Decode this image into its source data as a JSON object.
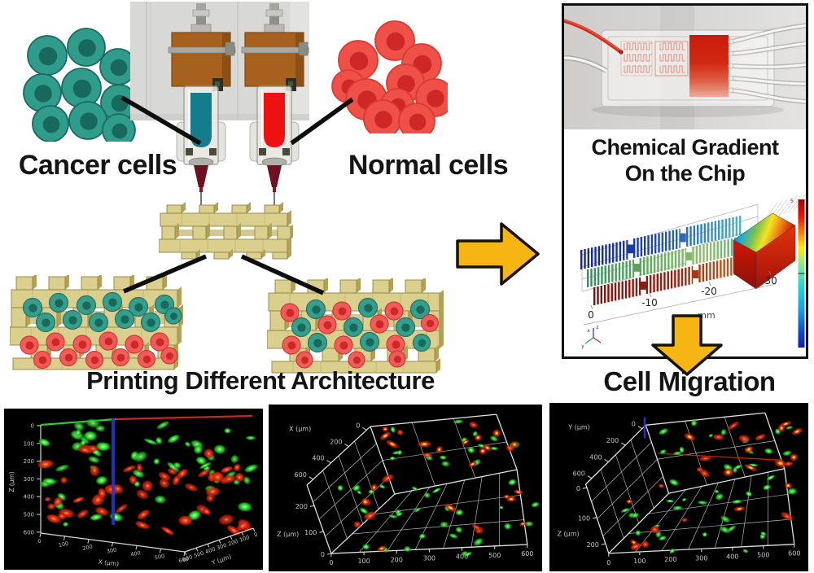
{
  "labels": {
    "cancer_cells": "Cancer cells",
    "normal_cells": "Normal cells",
    "printing_architecture": "Printing Different Architecture",
    "chip_line1": "Chemical Gradient",
    "chip_line2": "On the Chip",
    "cell_migration": "Cell Migration"
  },
  "simulation": {
    "x_ticks": [
      "0",
      "-10",
      "-20",
      "-30"
    ],
    "unit_label": "mm",
    "colorbar_top_label": "5",
    "axis_glyph_labels": [
      "x",
      "z",
      "y"
    ]
  },
  "confocal_plots": [
    {
      "id": "layered",
      "z_axis": {
        "label": "Z (μm)",
        "ticks": [
          "0",
          "100",
          "200",
          "300",
          "400",
          "500",
          "600"
        ]
      },
      "x_axis": {
        "label": "X (μm)",
        "ticks": [
          "0",
          "100",
          "200",
          "300",
          "400",
          "500",
          "600"
        ]
      },
      "y_axis": {
        "label": "Y (μm)",
        "ticks": [
          "600",
          "500",
          "400",
          "300",
          "200",
          "100",
          "0"
        ]
      },
      "dots": {
        "green": 58,
        "red": 52,
        "seed": 7
      }
    },
    {
      "id": "mixed_x",
      "depth_axis": {
        "label": "X (μm)",
        "ticks": [
          "0",
          "200",
          "400",
          "600"
        ]
      },
      "z_axis": {
        "label": "Z (μm)",
        "ticks": [
          "200",
          "100",
          "0"
        ]
      },
      "bottom_axis": {
        "ticks": [
          "0",
          "100",
          "200",
          "300",
          "400",
          "500",
          "600"
        ]
      },
      "dots": {
        "green": 46,
        "red": 30,
        "seed": 11
      }
    },
    {
      "id": "mixed_y",
      "depth_axis": {
        "label": "Y (μm)",
        "ticks": [
          "0",
          "200",
          "400",
          "600"
        ]
      },
      "z_axis": {
        "label": "Z (μm)",
        "ticks": [
          "0",
          "100",
          "200"
        ]
      },
      "bottom_axis": {
        "ticks": [
          "0",
          "100",
          "200",
          "300",
          "400",
          "500",
          "600"
        ]
      },
      "dots": {
        "green": 44,
        "red": 28,
        "seed": 23
      }
    }
  ],
  "colors": {
    "cancer_cell": "#2f9c8c",
    "cancer_nucleus": "#17695e",
    "normal_cell": "#ef5048",
    "normal_nucleus": "#cf2626",
    "scaffold_face": "#dbcf8e",
    "scaffold_side": "#b2a258",
    "scaffold_edge": "#92823f",
    "arrow_fill": "#f6b513",
    "arrow_outline": "#171309",
    "bioink_teal": "#147c8c",
    "bioink_red": "#ee1111",
    "dot_green": "#2ad42a",
    "dot_red": "#e33311",
    "dot_yellow": "#ffcc33",
    "panel_border": "#111111"
  }
}
